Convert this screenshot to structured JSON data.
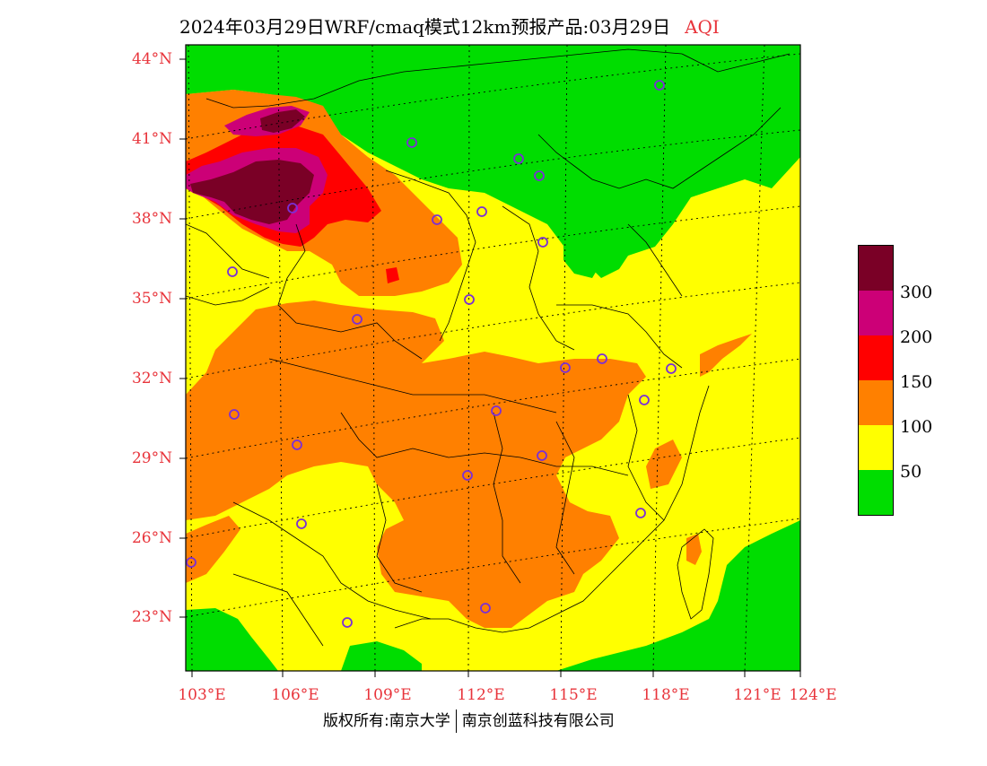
{
  "title": {
    "text": "2024年03月29日WRF/cmaq模式12km预报产品:03月29日",
    "variable": "AQI"
  },
  "lat_labels": [
    "44°N",
    "41°N",
    "38°N",
    "35°N",
    "32°N",
    "29°N",
    "26°N",
    "23°N"
  ],
  "lon_labels": [
    "103°E",
    "106°E",
    "109°E",
    "112°E",
    "115°E",
    "118°E",
    "121°E",
    "124°E"
  ],
  "legend": {
    "levels": [
      "300",
      "200",
      "150",
      "100",
      "50"
    ],
    "colors": [
      "#7a0026",
      "#cc0077",
      "#ff0000",
      "#ff8000",
      "#ffff00",
      "#00dd00"
    ]
  },
  "footer": {
    "left": "版权所有:南京大学",
    "right": "南京创蓝科技有限公司"
  },
  "colors": {
    "good": "#00dd00",
    "moderate": "#ffff00",
    "sensitive": "#ff8000",
    "unhealthy": "#ff0000",
    "very_unhealthy": "#cc0077",
    "hazardous": "#7a0026",
    "label_red": "#e8343b",
    "station_marker": "#7b2fd6"
  }
}
